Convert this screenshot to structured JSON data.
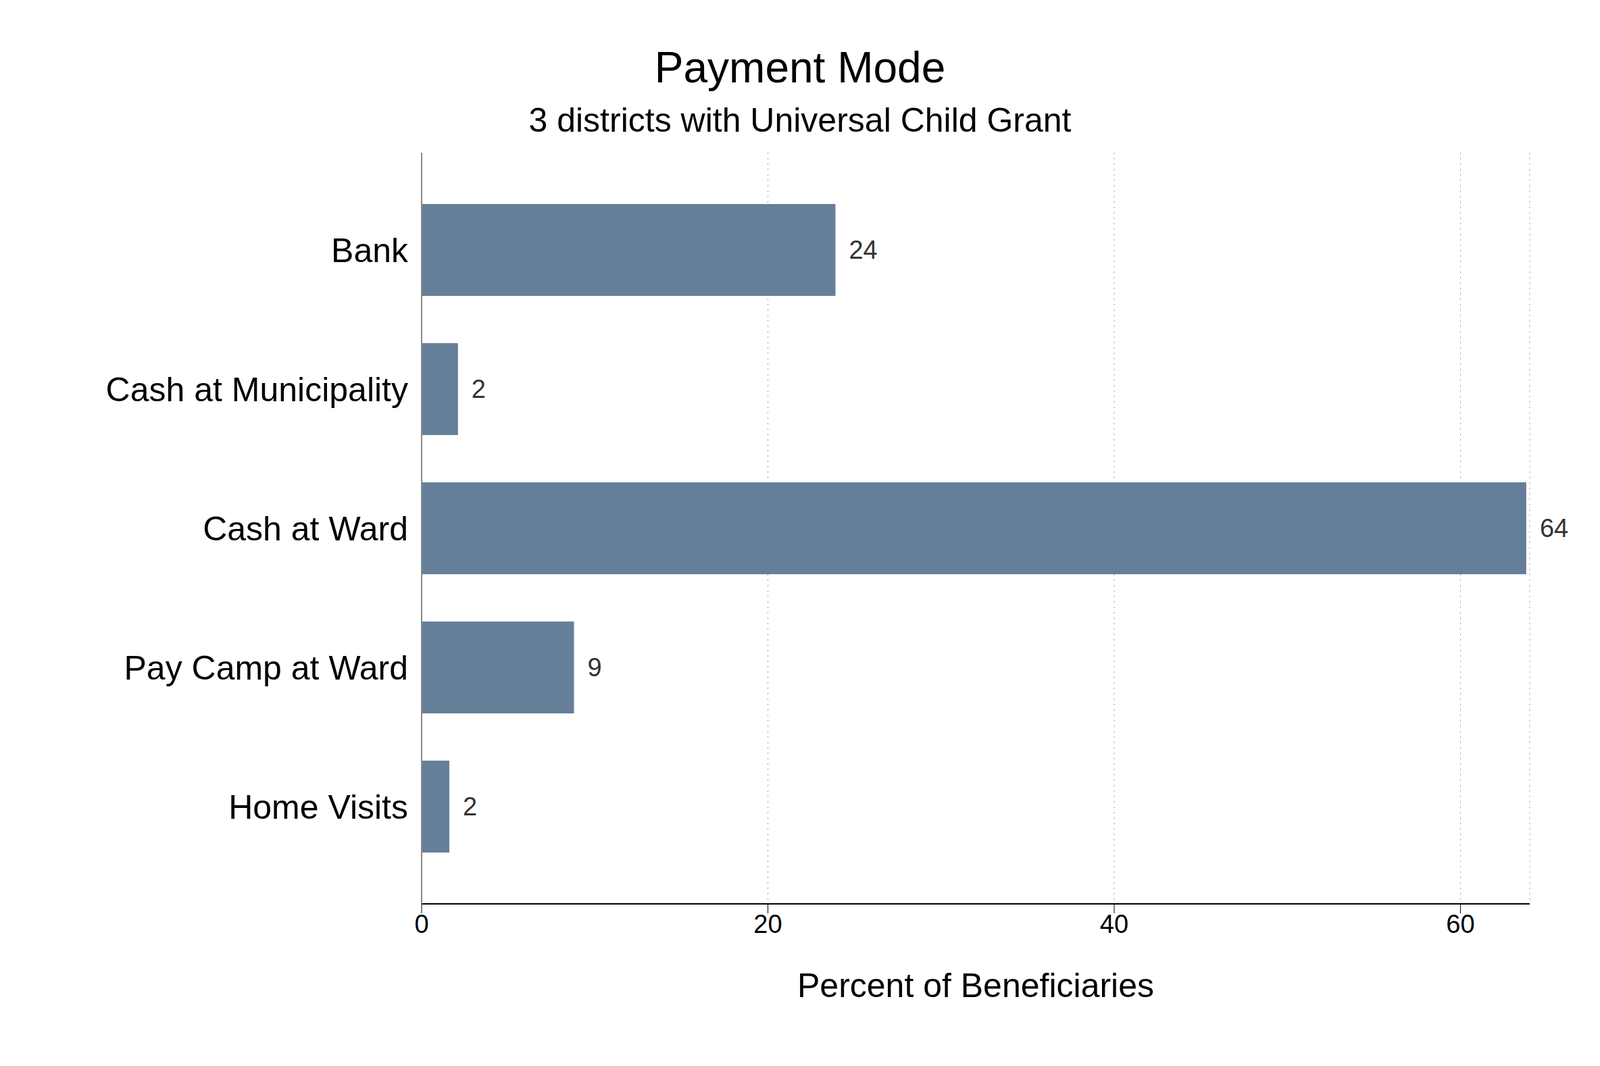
{
  "chart_data": {
    "type": "bar",
    "title": "Payment Mode",
    "subtitle": "3 districts with Universal Child Grant",
    "x_label": "Percent of Beneficiaries",
    "categories": [
      "Bank",
      "Cash at Municipality",
      "Cash at Ward",
      "Pay Camp at Ward",
      "Home Visits"
    ],
    "values": [
      23.9,
      2.1,
      63.8,
      8.8,
      1.6
    ],
    "value_labels": [
      "24",
      "2",
      "64",
      "9",
      "2"
    ],
    "color": "#667f99",
    "xlim": [
      0,
      64
    ],
    "xticks": [
      0,
      20,
      40,
      60
    ],
    "grid": true,
    "orientation": "horizontal",
    "data_labels": true
  }
}
